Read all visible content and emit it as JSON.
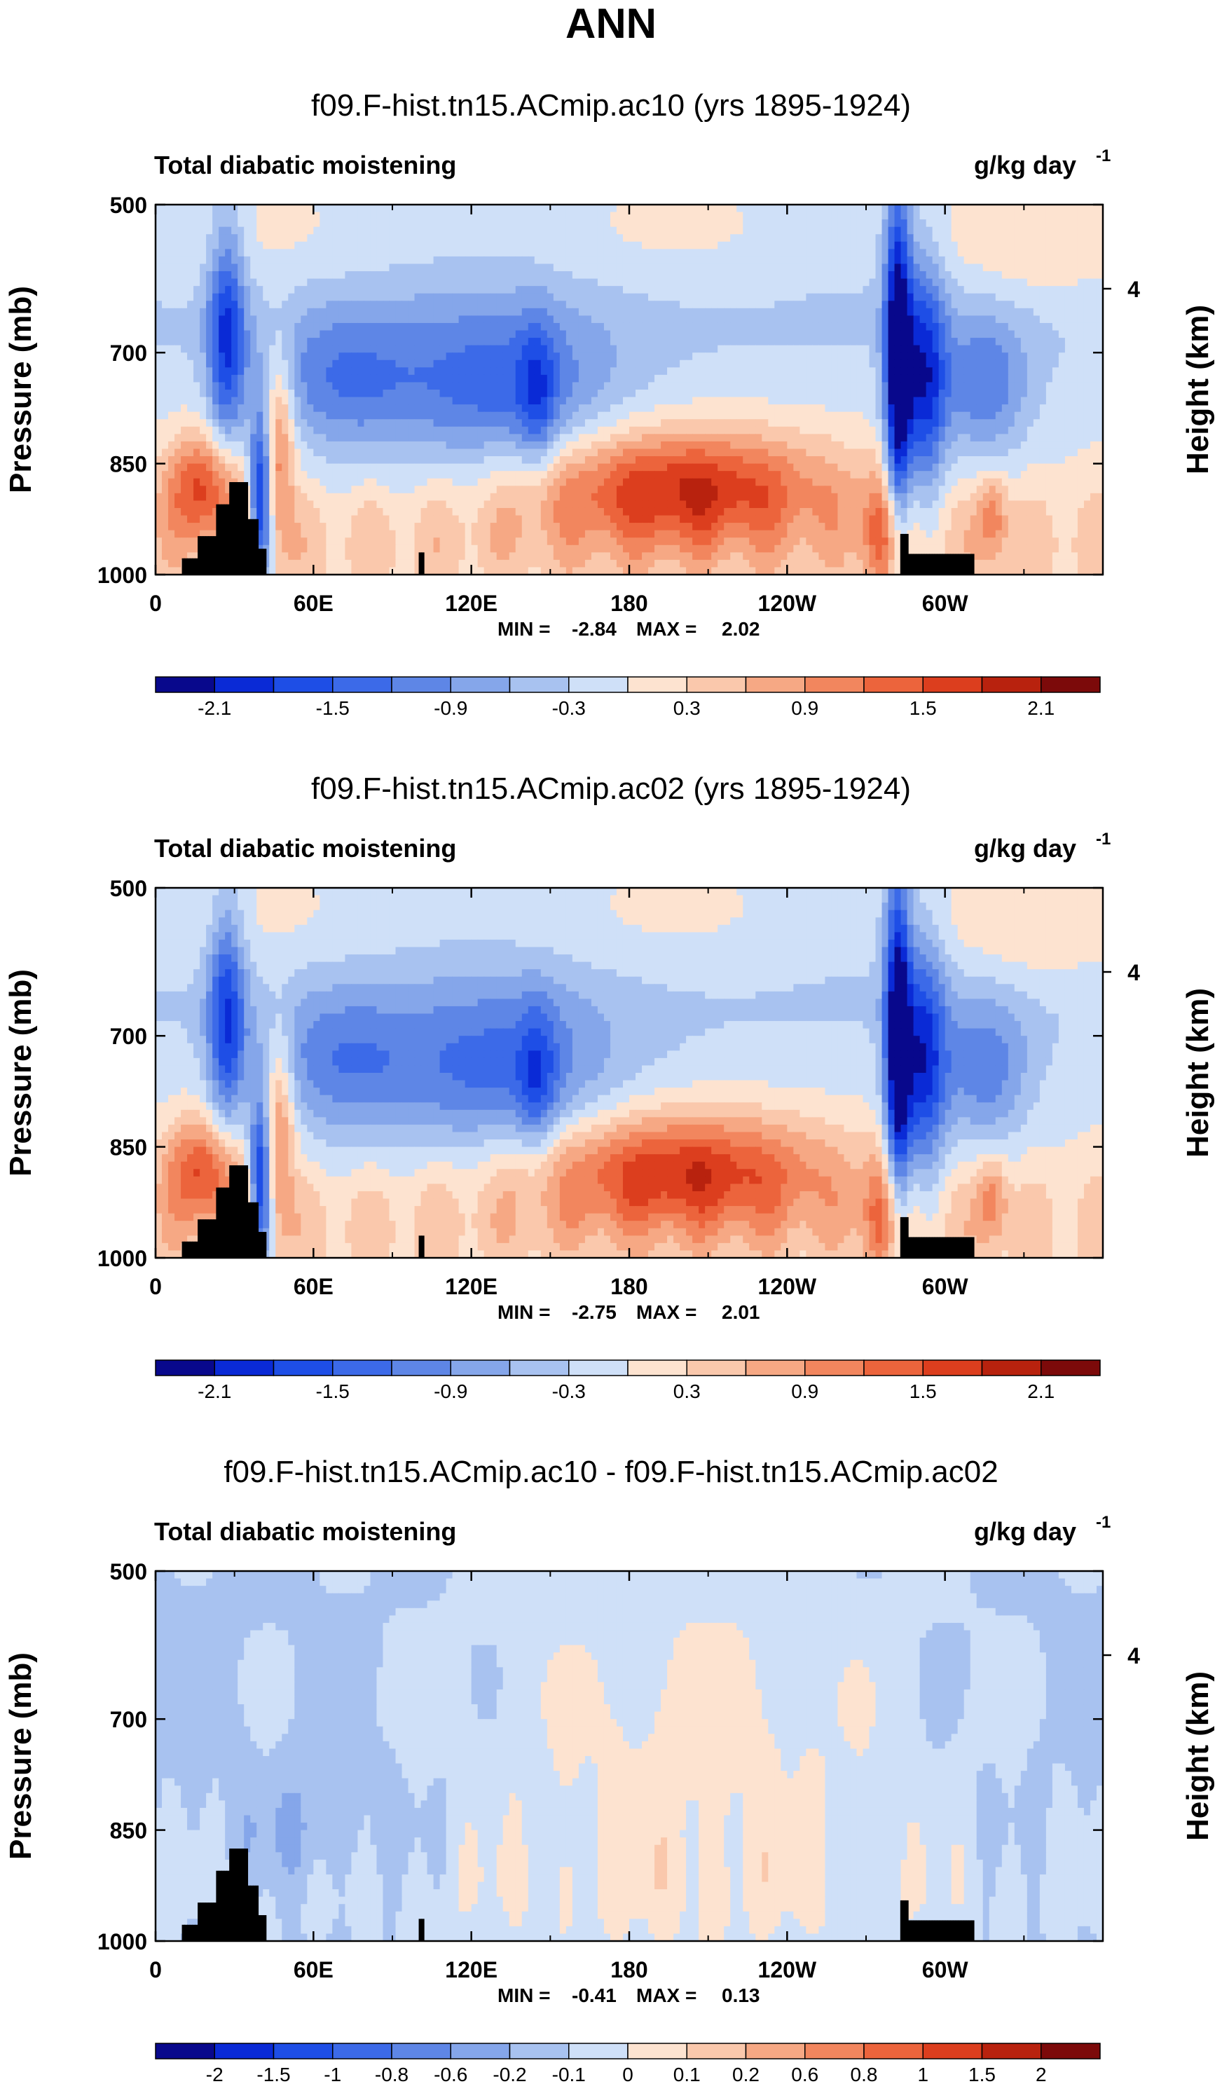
{
  "page_title": "ANN",
  "chart_data": [
    {
      "type": "heatmap",
      "title": "f09.F-hist.tn15.ACmip.ac10 (yrs 1895-1924)",
      "variable_label": "Total diabatic moistening",
      "units_label": "g/kg day",
      "units_exponent": "-1",
      "ylabel": "Pressure (mb)",
      "ylabel_right": "Height (km)",
      "right_ticks": [
        "4"
      ],
      "yticks": [
        "500",
        "700",
        "850",
        "1000"
      ],
      "xticks": [
        "0",
        "60E",
        "120E",
        "180",
        "120W",
        "60W"
      ],
      "stats": {
        "min_label": "MIN =",
        "min": "-2.84",
        "max_label": "MAX =",
        "max": "2.02"
      },
      "colorbar_labels": [
        "-2.1",
        "-1.5",
        "-0.9",
        "-0.3",
        "0.3",
        "0.9",
        "1.5",
        "2.1"
      ],
      "field_type": "full"
    },
    {
      "type": "heatmap",
      "title": "f09.F-hist.tn15.ACmip.ac02 (yrs 1895-1924)",
      "variable_label": "Total diabatic moistening",
      "units_label": "g/kg day",
      "units_exponent": "-1",
      "ylabel": "Pressure (mb)",
      "ylabel_right": "Height (km)",
      "right_ticks": [
        "4"
      ],
      "yticks": [
        "500",
        "700",
        "850",
        "1000"
      ],
      "xticks": [
        "0",
        "60E",
        "120E",
        "180",
        "120W",
        "60W"
      ],
      "stats": {
        "min_label": "MIN =",
        "min": "-2.75",
        "max_label": "MAX =",
        "max": "2.01"
      },
      "colorbar_labels": [
        "-2.1",
        "-1.5",
        "-0.9",
        "-0.3",
        "0.3",
        "0.9",
        "1.5",
        "2.1"
      ],
      "field_type": "full"
    },
    {
      "type": "heatmap",
      "title": "f09.F-hist.tn15.ACmip.ac10 - f09.F-hist.tn15.ACmip.ac02",
      "variable_label": "Total diabatic moistening",
      "units_label": "g/kg day",
      "units_exponent": "-1",
      "ylabel": "Pressure (mb)",
      "ylabel_right": "Height (km)",
      "right_ticks": [
        "4"
      ],
      "yticks": [
        "500",
        "700",
        "850",
        "1000"
      ],
      "xticks": [
        "0",
        "60E",
        "120E",
        "180",
        "120W",
        "60W"
      ],
      "stats": {
        "min_label": "MIN =",
        "min": "-0.41",
        "max_label": "MAX =",
        "max": "0.13"
      },
      "colorbar_labels": [
        "-2",
        "-1.5",
        "-1",
        "-0.8",
        "-0.6",
        "-0.2",
        "-0.1",
        "0",
        "0.1",
        "0.2",
        "0.6",
        "0.8",
        "1",
        "1.5",
        "2"
      ],
      "field_type": "diff"
    }
  ],
  "colors": {
    "full_palette": [
      "#08088c",
      "#0a2ad6",
      "#1e4ee6",
      "#3c6ae8",
      "#5e86e6",
      "#85a6ea",
      "#a8c2f0",
      "#cfe0f8",
      "#fde3d0",
      "#fac8ac",
      "#f6a884",
      "#f2865e",
      "#ec643c",
      "#dc3e1e",
      "#b8220e",
      "#7c0a0a"
    ],
    "diff_palette": [
      "#08088c",
      "#0a2ad6",
      "#1e4ee6",
      "#3c6ae8",
      "#5e86e6",
      "#85a6ea",
      "#a8c2f0",
      "#cfe0f8",
      "#fde3d0",
      "#fac8ac",
      "#f6a884",
      "#f2865e",
      "#ec643c",
      "#dc3e1e",
      "#b8220e",
      "#7c0a0a"
    ],
    "topography": "#000000"
  }
}
